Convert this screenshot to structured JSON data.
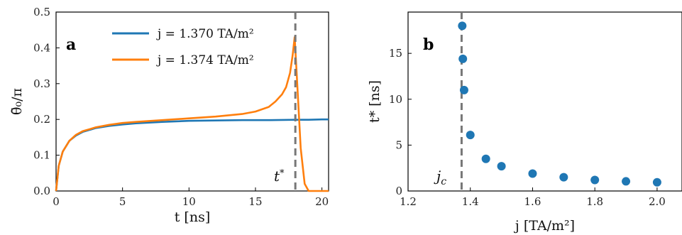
{
  "chart_data": [
    {
      "type": "line",
      "panel_label": "a",
      "xlabel": "t [ns]",
      "ylabel": "θ̄₀/π",
      "xlim": [
        0,
        20.5
      ],
      "ylim": [
        0,
        0.5
      ],
      "xticks": [
        "0",
        "5",
        "10",
        "15",
        "20"
      ],
      "yticks": [
        "0.0",
        "0.1",
        "0.2",
        "0.3",
        "0.4",
        "0.5"
      ],
      "grid": false,
      "legend_position": "top-center",
      "annotation": {
        "text": "t*",
        "x": 18.0
      },
      "vline_x": 18.0,
      "series": [
        {
          "name": "j = 1.370 TA/m²",
          "color": "#1f77b4",
          "x": [
            0,
            0.2,
            0.5,
            1.0,
            1.5,
            2.0,
            3.0,
            4.0,
            5.0,
            6.0,
            8.0,
            10.0,
            12.0,
            14.0,
            16.0,
            18.0,
            19.0,
            20.0,
            20.5
          ],
          "y": [
            0.0,
            0.07,
            0.11,
            0.14,
            0.155,
            0.165,
            0.176,
            0.182,
            0.186,
            0.189,
            0.193,
            0.196,
            0.197,
            0.198,
            0.198,
            0.199,
            0.199,
            0.2,
            0.2
          ]
        },
        {
          "name": "j = 1.374 TA/m²",
          "color": "#ff7f0e",
          "x": [
            0,
            0.2,
            0.5,
            1.0,
            1.5,
            2.0,
            3.0,
            4.0,
            5.0,
            6.0,
            8.0,
            10.0,
            12.0,
            14.0,
            15.0,
            16.0,
            16.5,
            17.0,
            17.3,
            17.6,
            17.8,
            17.95,
            18.1,
            18.4,
            18.7,
            19.0,
            20.0,
            20.5
          ],
          "y": [
            0.0,
            0.07,
            0.11,
            0.14,
            0.157,
            0.167,
            0.178,
            0.185,
            0.19,
            0.193,
            0.198,
            0.203,
            0.208,
            0.215,
            0.222,
            0.235,
            0.25,
            0.27,
            0.29,
            0.33,
            0.38,
            0.43,
            0.33,
            0.12,
            0.02,
            0.0,
            0.0,
            0.0
          ]
        }
      ]
    },
    {
      "type": "scatter",
      "panel_label": "b",
      "xlabel": "j [TA/m²]",
      "ylabel": "t* [ns]",
      "xlim": [
        1.2,
        2.08
      ],
      "ylim": [
        0,
        19.5
      ],
      "xticks": [
        "1.2",
        "1.4",
        "1.6",
        "1.8",
        "2.0"
      ],
      "yticks": [
        "0",
        "5",
        "10",
        "15"
      ],
      "grid": false,
      "annotation": {
        "text": "j_c",
        "x": 1.372
      },
      "vline_x": 1.372,
      "series": [
        {
          "color": "#1f77b4",
          "x": [
            1.374,
            1.376,
            1.38,
            1.4,
            1.45,
            1.5,
            1.6,
            1.7,
            1.8,
            1.9,
            2.0
          ],
          "y": [
            18.0,
            14.4,
            11.0,
            6.1,
            3.5,
            2.7,
            1.9,
            1.5,
            1.2,
            1.05,
            0.95
          ]
        }
      ]
    }
  ]
}
